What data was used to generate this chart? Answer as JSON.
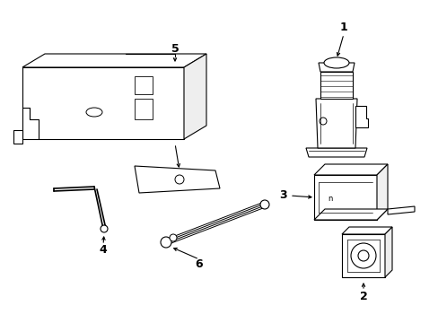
{
  "background_color": "#ffffff",
  "line_color": "#000000",
  "line_width": 0.8
}
